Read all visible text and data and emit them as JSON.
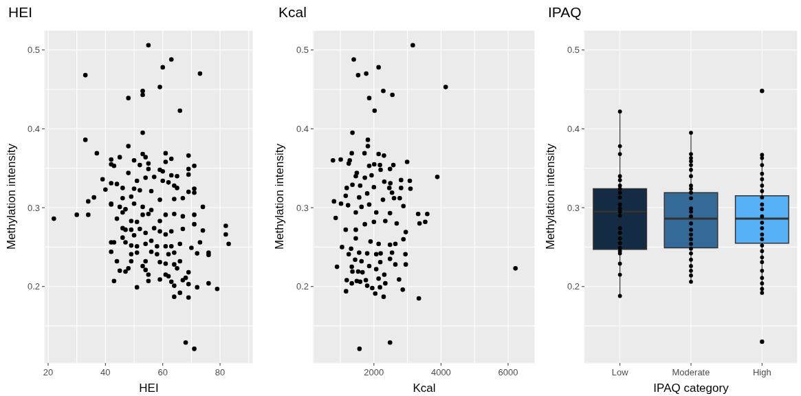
{
  "chart_data": [
    {
      "type": "scatter",
      "title": "HEI",
      "xlabel": "HEI",
      "ylabel": "Methylation intensity",
      "xlim": [
        18.8,
        91.5
      ],
      "xticks": [
        20,
        {
          "value": 30,
          "label": null
        },
        40,
        {
          "value": 50,
          "label": null
        },
        60,
        {
          "value": 70,
          "label": null
        },
        80,
        {
          "value": 90,
          "label": null
        }
      ],
      "ylim": [
        0.103,
        0.525
      ],
      "yticks": [
        {
          "value": 0.15,
          "label": null
        },
        0.2,
        {
          "value": 0.25,
          "label": null
        },
        0.3,
        {
          "value": 0.35,
          "label": null
        },
        0.4,
        {
          "value": 0.45,
          "label": null
        },
        0.5
      ],
      "grid": true,
      "marker": "circle",
      "series": [
        {
          "color": "#000000",
          "x": [
            55,
            63,
            60,
            33,
            73,
            59,
            53,
            53,
            48,
            66,
            53,
            33,
            48,
            37,
            53,
            61,
            69,
            54,
            63,
            45,
            42,
            50,
            61,
            42,
            43,
            52,
            55,
            71,
            69,
            55,
            59,
            60,
            48,
            69,
            39,
            42,
            51,
            54,
            57,
            63,
            65,
            44,
            60,
            62,
            40,
            46,
            50,
            52,
            56,
            64,
            65,
            71,
            69,
            49,
            46,
            36,
            34,
            42,
            59,
            64,
            67,
            71,
            45,
            50,
            53,
            74,
            22,
            30,
            34,
            42,
            44,
            46,
            47,
            49,
            51,
            53,
            55,
            56,
            59,
            61,
            64,
            67,
            71,
            71,
            74,
            82,
            82,
            83,
            46,
            47,
            49,
            50,
            52,
            54,
            57,
            59,
            61,
            63,
            67,
            46,
            47,
            42,
            43,
            49,
            51,
            54,
            56,
            58,
            61,
            63,
            66,
            70,
            73,
            42,
            49,
            51,
            56,
            58,
            62,
            64,
            72,
            76,
            76,
            44,
            49,
            53,
            54,
            59,
            61,
            64,
            66,
            45,
            48,
            47,
            54,
            55,
            61,
            62,
            65,
            69,
            43,
            55,
            59,
            63,
            67,
            68,
            69,
            64,
            51,
            72,
            76,
            79,
            64,
            66,
            69,
            68,
            71
          ],
          "values": [
            0.506,
            0.488,
            0.478,
            0.468,
            0.47,
            0.453,
            0.448,
            0.443,
            0.439,
            0.423,
            0.395,
            0.386,
            0.378,
            0.369,
            0.368,
            0.369,
            0.366,
            0.364,
            0.362,
            0.364,
            0.361,
            0.36,
            0.358,
            0.355,
            0.353,
            0.354,
            0.356,
            0.353,
            0.349,
            0.349,
            0.348,
            0.346,
            0.344,
            0.342,
            0.336,
            0.331,
            0.334,
            0.338,
            0.339,
            0.341,
            0.34,
            0.33,
            0.334,
            0.332,
            0.323,
            0.325,
            0.324,
            0.322,
            0.321,
            0.328,
            0.325,
            0.324,
            0.32,
            0.314,
            0.312,
            0.313,
            0.308,
            0.305,
            0.31,
            0.311,
            0.312,
            0.319,
            0.301,
            0.305,
            0.301,
            0.301,
            0.286,
            0.291,
            0.291,
            0.304,
            0.286,
            0.294,
            0.298,
            0.283,
            0.282,
            0.291,
            0.292,
            0.297,
            0.283,
            0.291,
            0.292,
            0.289,
            0.291,
            0.279,
            0.271,
            0.277,
            0.266,
            0.254,
            0.274,
            0.272,
            0.272,
            0.265,
            0.273,
            0.268,
            0.274,
            0.27,
            0.266,
            0.27,
            0.273,
            0.262,
            0.256,
            0.256,
            0.256,
            0.252,
            0.251,
            0.254,
            0.258,
            0.251,
            0.251,
            0.251,
            0.254,
            0.249,
            0.256,
            0.244,
            0.241,
            0.243,
            0.244,
            0.241,
            0.241,
            0.243,
            0.242,
            0.243,
            0.24,
            0.232,
            0.232,
            0.226,
            0.232,
            0.231,
            0.229,
            0.228,
            0.232,
            0.22,
            0.223,
            0.219,
            0.221,
            0.215,
            0.215,
            0.213,
            0.223,
            0.218,
            0.207,
            0.207,
            0.209,
            0.206,
            0.208,
            0.211,
            0.203,
            0.201,
            0.199,
            0.199,
            0.204,
            0.197,
            0.187,
            0.192,
            0.186,
            0.129,
            0.121
          ]
        }
      ]
    },
    {
      "type": "scatter",
      "title": "Kcal",
      "xlabel": "Kcal",
      "ylabel": "Methylation intensity",
      "xlim": [
        200,
        6800
      ],
      "xticks": [
        {
          "value": 1000,
          "label": null
        },
        2000,
        {
          "value": 3000,
          "label": null
        },
        4000,
        {
          "value": 5000,
          "label": null
        },
        6000
      ],
      "ylim": [
        0.103,
        0.525
      ],
      "yticks": [
        {
          "value": 0.15,
          "label": null
        },
        0.2,
        {
          "value": 0.25,
          "label": null
        },
        0.3,
        {
          "value": 0.35,
          "label": null
        },
        0.4,
        {
          "value": 0.45,
          "label": null
        },
        0.5
      ],
      "grid": true,
      "marker": "circle",
      "series": [
        {
          "color": "#000000",
          "x": [
            3160,
            1400,
            2140,
            1530,
            1770,
            4140,
            2280,
            2550,
            1860,
            2020,
            1360,
            1820,
            1820,
            1340,
            1720,
            2140,
            2300,
            780,
            1010,
            1280,
            2990,
            1250,
            1860,
            2010,
            2580,
            2180,
            2200,
            2480,
            3890,
            1490,
            1460,
            1730,
            1930,
            2310,
            2810,
            3070,
            2490,
            1190,
            1360,
            1590,
            3090,
            2810,
            2460,
            2000,
            1160,
            1560,
            1800,
            2540,
            2770,
            2600,
            810,
            1020,
            1230,
            1630,
            1860,
            2270,
            2880,
            3320,
            3590,
            860,
            1460,
            2070,
            2480,
            3360,
            3530,
            1160,
            1460,
            1730,
            2000,
            2340,
            2680,
            2950,
            2880,
            1460,
            1900,
            2140,
            2480,
            2640,
            1050,
            1320,
            1560,
            1250,
            1800,
            2070,
            2200,
            2540,
            2940,
            1440,
            1630,
            2480,
            2950,
            2640,
            2190,
            900,
            1340,
            1860,
            1360,
            1530,
            2070,
            1660,
            2310,
            2140,
            1190,
            1490,
            1760,
            2750,
            1340,
            1590,
            2340,
            1800,
            1950,
            2180,
            1170,
            2040,
            2860,
            2290,
            3340,
            6220,
            1570,
            2480
          ],
          "values": [
            0.506,
            0.488,
            0.478,
            0.468,
            0.47,
            0.453,
            0.448,
            0.443,
            0.439,
            0.423,
            0.395,
            0.386,
            0.378,
            0.369,
            0.369,
            0.368,
            0.366,
            0.36,
            0.361,
            0.36,
            0.358,
            0.356,
            0.353,
            0.355,
            0.354,
            0.354,
            0.348,
            0.349,
            0.339,
            0.344,
            0.34,
            0.338,
            0.341,
            0.333,
            0.335,
            0.334,
            0.331,
            0.325,
            0.329,
            0.328,
            0.324,
            0.325,
            0.325,
            0.326,
            0.315,
            0.313,
            0.318,
            0.319,
            0.312,
            0.312,
            0.308,
            0.305,
            0.303,
            0.301,
            0.304,
            0.31,
            0.302,
            0.292,
            0.292,
            0.287,
            0.294,
            0.294,
            0.293,
            0.28,
            0.282,
            0.272,
            0.272,
            0.279,
            0.282,
            0.283,
            0.28,
            0.269,
            0.26,
            0.261,
            0.257,
            0.254,
            0.253,
            0.254,
            0.25,
            0.248,
            0.243,
            0.241,
            0.242,
            0.241,
            0.242,
            0.243,
            0.241,
            0.234,
            0.232,
            0.235,
            0.228,
            0.228,
            0.231,
            0.225,
            0.225,
            0.226,
            0.219,
            0.219,
            0.222,
            0.218,
            0.215,
            0.21,
            0.208,
            0.207,
            0.208,
            0.209,
            0.204,
            0.206,
            0.204,
            0.201,
            0.198,
            0.199,
            0.194,
            0.191,
            0.196,
            0.187,
            0.185,
            0.223,
            0.121,
            0.129
          ]
        }
      ]
    },
    {
      "type": "box",
      "title": "IPAQ",
      "xlabel": "IPAQ category",
      "ylabel": "Methylation intensity",
      "categories": [
        "Low",
        "Moderate",
        "High"
      ],
      "ylim": [
        0.103,
        0.525
      ],
      "yticks": [
        {
          "value": 0.15,
          "label": null
        },
        0.2,
        {
          "value": 0.25,
          "label": null
        },
        0.3,
        {
          "value": 0.35,
          "label": null
        },
        0.4,
        {
          "value": 0.45,
          "label": null
        },
        0.5
      ],
      "grid": true,
      "marker": "circle",
      "series": [
        {
          "type": "box",
          "colors": [
            "#132b43",
            "#336a98",
            "#56b1f7"
          ],
          "boxes": [
            {
              "low": 0.188,
              "q1": 0.247,
              "median": 0.295,
              "q3": 0.324,
              "high": 0.422
            },
            {
              "low": 0.206,
              "q1": 0.249,
              "median": 0.286,
              "q3": 0.319,
              "high": 0.395
            },
            {
              "low": 0.192,
              "q1": 0.255,
              "median": 0.286,
              "q3": 0.315,
              "high": 0.368,
              "outliers": [
                0.448,
                0.13
              ]
            }
          ]
        },
        {
          "type": "scatter",
          "color": "#000000",
          "x": [
            "Low",
            "Low",
            "Low",
            "Low",
            "Low",
            "Low",
            "Low",
            "Low",
            "Low",
            "Low",
            "Low",
            "Low",
            "Low",
            "Low",
            "Low",
            "Low",
            "Low",
            "Low",
            "Low",
            "Low",
            "Low",
            "Low",
            "Low",
            "Moderate",
            "Moderate",
            "Moderate",
            "Moderate",
            "Moderate",
            "Moderate",
            "Moderate",
            "Moderate",
            "Moderate",
            "Moderate",
            "Moderate",
            "Moderate",
            "Moderate",
            "Moderate",
            "Moderate",
            "Moderate",
            "Moderate",
            "Moderate",
            "Moderate",
            "Moderate",
            "Moderate",
            "Moderate",
            "Moderate",
            "Moderate",
            "Moderate",
            "Moderate",
            "High",
            "High",
            "High",
            "High",
            "High",
            "High",
            "High",
            "High",
            "High",
            "High",
            "High",
            "High",
            "High",
            "High",
            "High",
            "High",
            "High",
            "High",
            "High",
            "High",
            "High",
            "High",
            "High",
            "High"
          ],
          "values": [
            0.422,
            0.378,
            0.368,
            0.34,
            0.335,
            0.328,
            0.324,
            0.319,
            0.313,
            0.304,
            0.299,
            0.295,
            0.29,
            0.274,
            0.268,
            0.261,
            0.255,
            0.249,
            0.245,
            0.242,
            0.229,
            0.215,
            0.188,
            0.395,
            0.368,
            0.363,
            0.359,
            0.354,
            0.348,
            0.34,
            0.328,
            0.324,
            0.319,
            0.312,
            0.299,
            0.295,
            0.289,
            0.28,
            0.272,
            0.266,
            0.26,
            0.254,
            0.248,
            0.242,
            0.234,
            0.226,
            0.22,
            0.214,
            0.206,
            0.367,
            0.363,
            0.354,
            0.343,
            0.336,
            0.328,
            0.321,
            0.313,
            0.304,
            0.298,
            0.289,
            0.281,
            0.274,
            0.266,
            0.26,
            0.252,
            0.245,
            0.237,
            0.231,
            0.22,
            0.211,
            0.204,
            0.197,
            0.192
          ]
        }
      ]
    }
  ]
}
